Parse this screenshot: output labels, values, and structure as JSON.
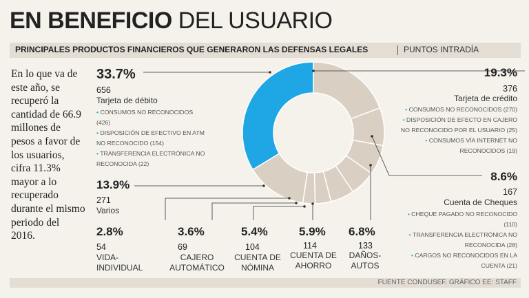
{
  "title_bold": "EN BENEFICIO",
  "title_light": "DEL USUARIO",
  "subtitle": "PRINCIPALES PRODUCTOS FINANCIEROS QUE GENERARON LAS DEFENSAS LEGALES",
  "subtitle_right": "PUNTOS INTRADÍA",
  "intro_text": "En lo que va de este año, se recuperó la cantidad de 66.9 millones de pesos a favor de los usuarios, cifra 11.3% mayor a lo recuperado durante el mismo periodo del 2016.",
  "source": "FUENTE CONDUSEF. GRÁFICO EE: STAFF",
  "colors": {
    "highlight": "#1ea7e4",
    "segment": "#d9cfc2",
    "divider": "#ffffff",
    "background": "#f5f2ec"
  },
  "chart_data": {
    "type": "pie",
    "style": "donut",
    "slices": [
      {
        "label": "Tarjeta de débito",
        "percent": "33.7%",
        "value": 33.7,
        "count": "656",
        "highlight": true
      },
      {
        "label": "Tarjeta de crédito",
        "percent": "19.3%",
        "value": 19.3,
        "count": "376"
      },
      {
        "label": "Cuenta de Cheques",
        "percent": "8.6%",
        "value": 8.6,
        "count": "167"
      },
      {
        "label": "DAÑOS-AUTOS",
        "percent": "6.8%",
        "value": 6.8,
        "count": "133"
      },
      {
        "label": "CUENTA DE AHORRO",
        "percent": "5.9%",
        "value": 5.9,
        "count": "114"
      },
      {
        "label": "CUENTA DE NÓMINA",
        "percent": "5.4%",
        "value": 5.4,
        "count": "104"
      },
      {
        "label": "CAJERO AUTOMÁTICO",
        "percent": "3.6%",
        "value": 3.6,
        "count": "69"
      },
      {
        "label": "VIDA-INDIVIDUAL",
        "percent": "2.8%",
        "value": 2.8,
        "count": "54"
      },
      {
        "label": "Varios",
        "percent": "13.9%",
        "value": 13.9,
        "count": "271"
      }
    ],
    "details": {
      "debito": [
        "CONSUMOS NO RECONOCIDOS (426)",
        "DISPOSICIÓN DE EFECTIVO EN ATM NO RECONOCIDO (154)",
        "TRANSFERENCIA ELECTRÓNICA NO RECONOCIDA (22)"
      ],
      "credito": [
        "CONSUMOS NO RECONOCIDOS (270)",
        "DISPOSICIÓN DE EFECTO EN CAJERO NO RECONOCIDO POR EL USUARIO (25)",
        "CONSUMOS VÍA INTERNET NO RECONOCIDOS (19)"
      ],
      "cheques": [
        "CHEQUE PAGADO NO RECONOCIDO (110)",
        "TRANSFERENCIA ELECTRÓNICA NO RECONOCIDA (28)",
        "CARGOS NO RECONOCIDOS EN LA CUENTA (21)"
      ]
    }
  }
}
